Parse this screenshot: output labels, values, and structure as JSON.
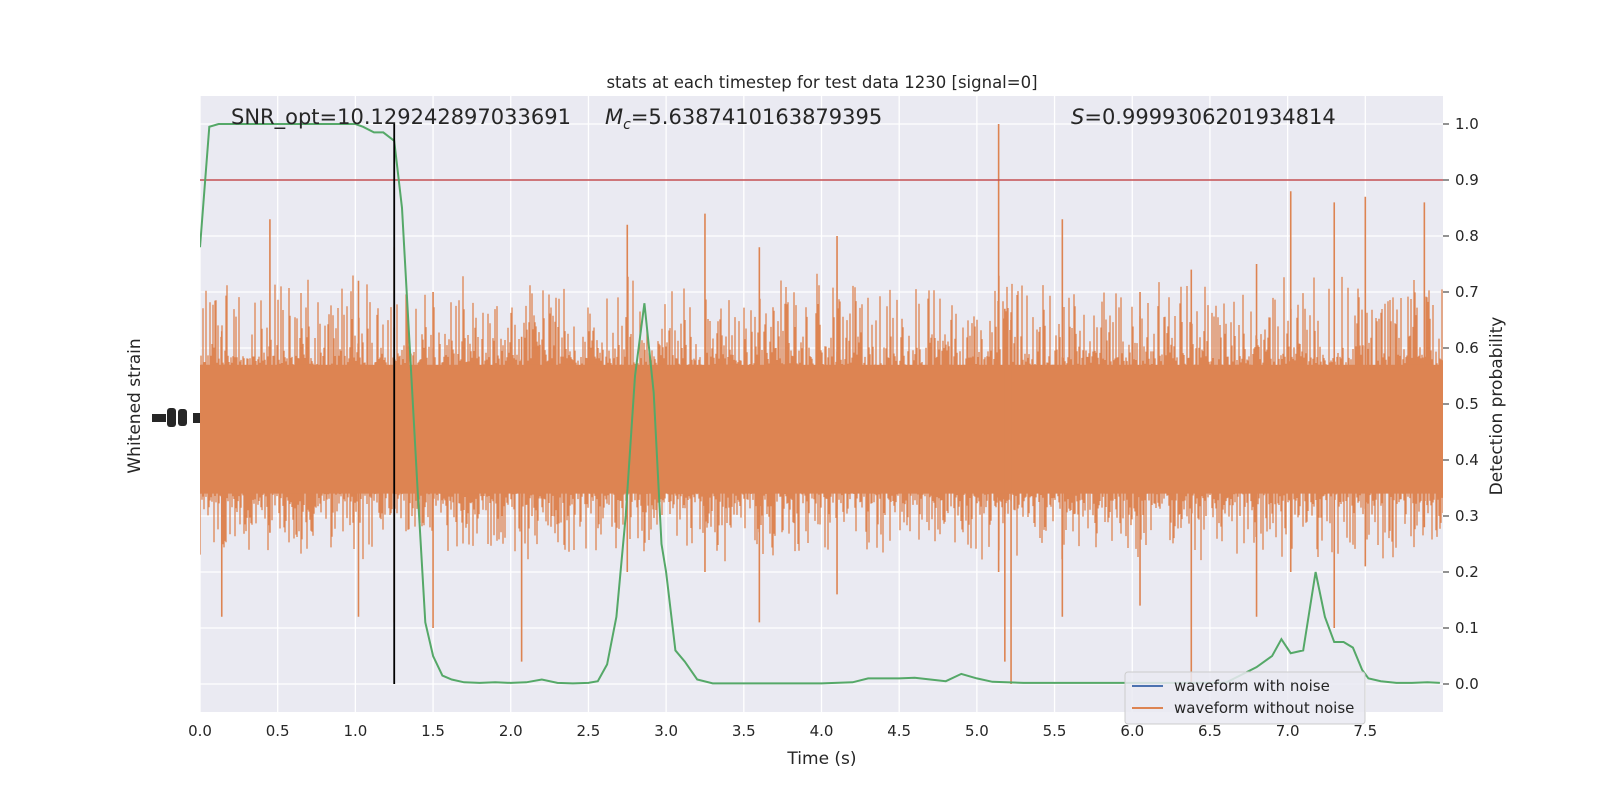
{
  "chart_data": {
    "type": "line",
    "title": "stats at each timestep for test data 1230 [signal=0]",
    "xlabel": "Time (s)",
    "ylabel_left": "Whitened strain",
    "ylabel_right": "Detection probability",
    "xlim": [
      0.0,
      8.0
    ],
    "ylim_right": [
      -0.05,
      1.05
    ],
    "grid": true,
    "legend_position": "lower-right",
    "x_ticks": [
      "0.0",
      "0.5",
      "1.0",
      "1.5",
      "2.0",
      "2.5",
      "3.0",
      "3.5",
      "4.0",
      "4.5",
      "5.0",
      "5.5",
      "6.0",
      "6.5",
      "7.0",
      "7.5"
    ],
    "y_ticks_right": [
      "0.0",
      "0.1",
      "0.2",
      "0.3",
      "0.4",
      "0.5",
      "0.6",
      "0.7",
      "0.8",
      "0.9",
      "1.0"
    ],
    "annotations": {
      "snr": "SNR_opt=10.129242897033691",
      "mc_symbol": "M",
      "mc_sub": "c",
      "mc_value": "=5.6387410163879395",
      "s_symbol": "S",
      "s_value": "=0.9999306201934814"
    },
    "threshold": 0.9,
    "marker_time": 1.25,
    "series": [
      {
        "name": "waveform with noise",
        "color": "#4c72b0",
        "kind": "strain"
      },
      {
        "name": "waveform without noise",
        "color": "#dd8452",
        "kind": "strain",
        "band_center": 0.455,
        "band_envelope_range": [
          0.33,
          0.6
        ],
        "spikes": [
          {
            "x": 0.14,
            "min": 0.12,
            "max": 0.63
          },
          {
            "x": 0.45,
            "min": 0.27,
            "max": 0.83
          },
          {
            "x": 1.02,
            "min": 0.12,
            "max": 0.72
          },
          {
            "x": 1.25,
            "min": 0.11,
            "max": 0.78
          },
          {
            "x": 1.5,
            "min": 0.1,
            "max": 0.7
          },
          {
            "x": 2.07,
            "min": 0.04,
            "max": 0.62
          },
          {
            "x": 2.75,
            "min": 0.2,
            "max": 0.82
          },
          {
            "x": 3.25,
            "min": 0.2,
            "max": 0.84
          },
          {
            "x": 3.6,
            "min": 0.11,
            "max": 0.78
          },
          {
            "x": 4.1,
            "min": 0.16,
            "max": 0.8
          },
          {
            "x": 5.14,
            "min": 0.2,
            "max": 1.0
          },
          {
            "x": 5.18,
            "min": 0.04,
            "max": 0.67
          },
          {
            "x": 5.22,
            "min": 0.0,
            "max": 0.65
          },
          {
            "x": 5.55,
            "min": 0.12,
            "max": 0.83
          },
          {
            "x": 6.05,
            "min": 0.14,
            "max": 0.7
          },
          {
            "x": 6.38,
            "min": 0.0,
            "max": 0.74
          },
          {
            "x": 6.8,
            "min": 0.12,
            "max": 0.75
          },
          {
            "x": 7.02,
            "min": 0.2,
            "max": 0.88
          },
          {
            "x": 7.3,
            "min": 0.1,
            "max": 0.86
          },
          {
            "x": 7.5,
            "min": 0.21,
            "max": 0.87
          },
          {
            "x": 7.88,
            "min": 0.28,
            "max": 0.86
          }
        ]
      },
      {
        "name": "",
        "color": "#55a868",
        "kind": "probability",
        "x": [
          0.0,
          0.06,
          0.12,
          0.2,
          0.3,
          0.5,
          0.7,
          0.9,
          1.0,
          1.05,
          1.12,
          1.18,
          1.25,
          1.3,
          1.35,
          1.4,
          1.45,
          1.5,
          1.56,
          1.62,
          1.7,
          1.8,
          1.9,
          2.0,
          2.1,
          2.2,
          2.3,
          2.4,
          2.5,
          2.56,
          2.62,
          2.68,
          2.74,
          2.8,
          2.86,
          2.92,
          2.97,
          3.0,
          3.06,
          3.12,
          3.2,
          3.3,
          3.5,
          3.8,
          4.0,
          4.2,
          4.3,
          4.5,
          4.6,
          4.7,
          4.8,
          4.9,
          5.0,
          5.1,
          5.3,
          5.6,
          6.0,
          6.3,
          6.6,
          6.8,
          6.9,
          6.96,
          7.02,
          7.1,
          7.18,
          7.24,
          7.3,
          7.36,
          7.42,
          7.48,
          7.52,
          7.6,
          7.7,
          7.8,
          7.9,
          7.98
        ],
        "y": [
          0.78,
          0.995,
          1.0,
          1.0,
          1.0,
          1.0,
          1.0,
          1.0,
          1.0,
          0.995,
          0.985,
          0.985,
          0.97,
          0.85,
          0.6,
          0.35,
          0.11,
          0.05,
          0.015,
          0.008,
          0.003,
          0.002,
          0.003,
          0.002,
          0.003,
          0.008,
          0.002,
          0.001,
          0.002,
          0.005,
          0.035,
          0.12,
          0.3,
          0.55,
          0.68,
          0.52,
          0.25,
          0.2,
          0.06,
          0.04,
          0.008,
          0.001,
          0.001,
          0.001,
          0.001,
          0.003,
          0.01,
          0.01,
          0.011,
          0.008,
          0.005,
          0.018,
          0.01,
          0.004,
          0.002,
          0.002,
          0.002,
          0.002,
          0.002,
          0.03,
          0.05,
          0.08,
          0.055,
          0.06,
          0.2,
          0.12,
          0.075,
          0.075,
          0.065,
          0.025,
          0.01,
          0.005,
          0.002,
          0.002,
          0.003,
          0.002
        ]
      }
    ]
  }
}
